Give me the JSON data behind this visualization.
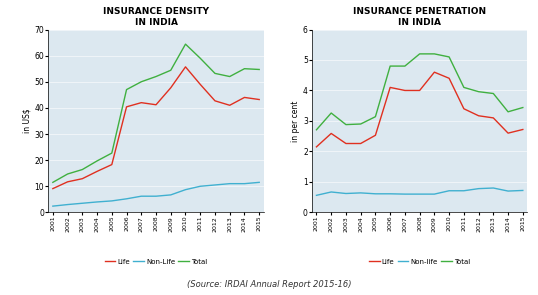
{
  "years": [
    "2001",
    "2002",
    "2003",
    "2004",
    "2005",
    "2006",
    "2007",
    "2008",
    "2009",
    "2010",
    "2011",
    "2012",
    "2013",
    "2014",
    "2015"
  ],
  "density": {
    "life": [
      9.1,
      11.7,
      12.9,
      15.7,
      18.3,
      40.4,
      42.0,
      41.2,
      47.7,
      55.7,
      49.0,
      42.7,
      41.0,
      44.0,
      43.2
    ],
    "nonlife": [
      2.4,
      3.0,
      3.5,
      4.0,
      4.4,
      5.2,
      6.2,
      6.2,
      6.7,
      8.7,
      10.0,
      10.5,
      11.0,
      11.0,
      11.5
    ],
    "total": [
      11.5,
      14.7,
      16.4,
      19.7,
      22.7,
      47.0,
      50.0,
      52.0,
      54.4,
      64.4,
      59.0,
      53.2,
      52.0,
      55.0,
      54.7
    ]
  },
  "penetration": {
    "life": [
      2.15,
      2.59,
      2.26,
      2.26,
      2.53,
      4.1,
      4.0,
      4.0,
      4.6,
      4.4,
      3.4,
      3.17,
      3.1,
      2.6,
      2.72
    ],
    "nonlife": [
      0.56,
      0.67,
      0.62,
      0.64,
      0.61,
      0.61,
      0.6,
      0.6,
      0.6,
      0.71,
      0.71,
      0.78,
      0.8,
      0.7,
      0.72
    ],
    "total": [
      2.71,
      3.26,
      2.88,
      2.9,
      3.14,
      4.8,
      4.8,
      5.2,
      5.2,
      5.1,
      4.1,
      3.96,
      3.9,
      3.3,
      3.44
    ]
  },
  "density_ylim": [
    0,
    70
  ],
  "penetration_ylim": [
    0,
    6
  ],
  "density_yticks": [
    0,
    10,
    20,
    30,
    40,
    50,
    60,
    70
  ],
  "penetration_yticks": [
    0,
    1,
    2,
    3,
    4,
    5,
    6
  ],
  "title1": "INSURANCE DENSITY\nIN INDIA",
  "title2": "INSURANCE PENETRATION\nIN INDIA",
  "ylabel1": "in US$",
  "ylabel2": "in per cent",
  "legend_labels1": [
    "Life",
    "Non-Life",
    "Total"
  ],
  "legend_labels2": [
    "Life",
    "Non-life",
    "Total"
  ],
  "line_colors": [
    "#e03020",
    "#40b0d0",
    "#40b040"
  ],
  "bg_color": "#dce8f0",
  "source_text": "(Source: IRDAI Annual Report 2015-16)",
  "outer_bg": "#f5f5f5"
}
